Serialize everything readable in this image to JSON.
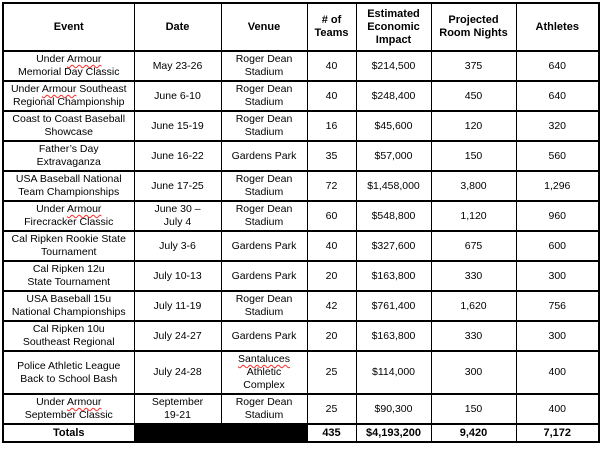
{
  "table": {
    "columns": [
      "Event",
      "Date",
      "Venue",
      "# of\nTeams",
      "Estimated\nEconomic\nImpact",
      "Projected\nRoom Nights",
      "Athletes"
    ],
    "rows": [
      {
        "event": "Under Armour\nMemorial Day Classic",
        "date": "May 23-26",
        "venue": "Roger Dean\nStadium",
        "teams": "40",
        "impact": "$214,500",
        "room_nights": "375",
        "athletes": "640"
      },
      {
        "event": "Under Armour Southeast\nRegional Championship",
        "date": "June 6-10",
        "venue": "Roger Dean\nStadium",
        "teams": "40",
        "impact": "$248,400",
        "room_nights": "450",
        "athletes": "640"
      },
      {
        "event": "Coast to Coast Baseball\nShowcase",
        "date": "June 15-19",
        "venue": "Roger Dean\nStadium",
        "teams": "16",
        "impact": "$45,600",
        "room_nights": "120",
        "athletes": "320"
      },
      {
        "event": "Father’s Day\nExtravaganza",
        "date": "June 16-22",
        "venue": "Gardens Park",
        "teams": "35",
        "impact": "$57,000",
        "room_nights": "150",
        "athletes": "560"
      },
      {
        "event": "USA Baseball National\nTeam Championships",
        "date": "June 17-25",
        "venue": "Roger Dean\nStadium",
        "teams": "72",
        "impact": "$1,458,000",
        "room_nights": "3,800",
        "athletes": "1,296"
      },
      {
        "event": "Under Armour\nFirecracker Classic",
        "date": "June 30 –\nJuly 4",
        "venue": "Roger Dean\nStadium",
        "teams": "60",
        "impact": "$548,800",
        "room_nights": "1,120",
        "athletes": "960"
      },
      {
        "event": "Cal Ripken Rookie State\nTournament",
        "date": "July 3-6",
        "venue": "Gardens Park",
        "teams": "40",
        "impact": "$327,600",
        "room_nights": "675",
        "athletes": "600"
      },
      {
        "event": "Cal Ripken 12u\nState Tournament",
        "date": "July 10-13",
        "venue": "Gardens Park",
        "teams": "20",
        "impact": "$163,800",
        "room_nights": "330",
        "athletes": "300"
      },
      {
        "event": "USA Baseball 15u\nNational Championships",
        "date": "July 11-19",
        "venue": "Roger Dean\nStadium",
        "teams": "42",
        "impact": "$761,400",
        "room_nights": "1,620",
        "athletes": "756"
      },
      {
        "event": "Cal Ripken 10u\nSoutheast Regional",
        "date": "July 24-27",
        "venue": "Gardens Park",
        "teams": "20",
        "impact": "$163,800",
        "room_nights": "330",
        "athletes": "300"
      },
      {
        "event": "Police Athletic League\nBack to School Bash",
        "date": "July 24-28",
        "venue": "Santaluces\nAthletic\nComplex",
        "teams": "25",
        "impact": "$114,000",
        "room_nights": "300",
        "athletes": "400"
      },
      {
        "event": "Under Armour\nSeptember Classic",
        "date": "September\n19-21",
        "venue": "Roger Dean\nStadium",
        "teams": "25",
        "impact": "$90,300",
        "room_nights": "150",
        "athletes": "400"
      }
    ],
    "totals": {
      "label": "Totals",
      "teams": "435",
      "impact": "$4,193,200",
      "room_nights": "9,420",
      "athletes": "7,172"
    }
  },
  "misspelled_words": [
    "Armour",
    "Santaluces"
  ],
  "colors": {
    "text": "#000000",
    "border": "#000000",
    "background": "#ffffff",
    "redaction_fill": "#000000",
    "misspell_underline": "#ff2a2a"
  }
}
